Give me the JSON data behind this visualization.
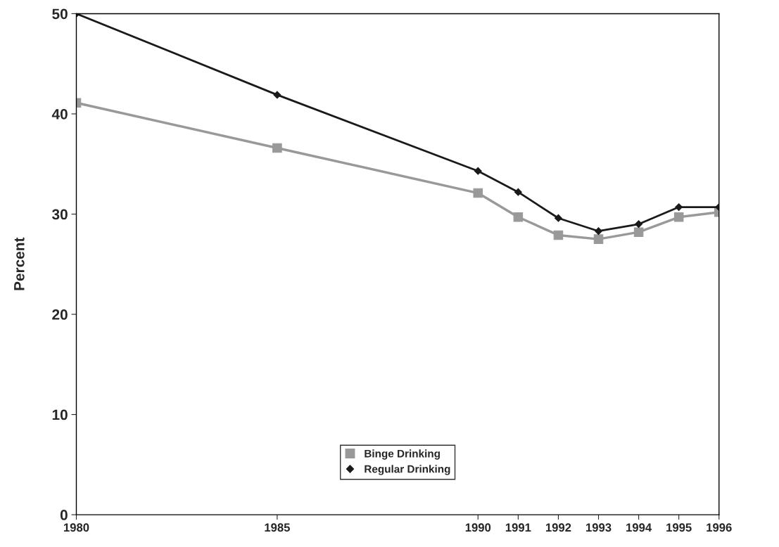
{
  "chart_data": {
    "type": "line",
    "ylabel": "Percent",
    "x": [
      1980,
      1985,
      1990,
      1991,
      1992,
      1993,
      1994,
      1995,
      1996
    ],
    "series": [
      {
        "name": "Binge Drinking",
        "color": "#999999",
        "marker": "square",
        "values": [
          41.1,
          36.6,
          32.1,
          29.7,
          27.9,
          27.5,
          28.2,
          29.7,
          30.2
        ]
      },
      {
        "name": "Regular Drinking",
        "color": "#1a1a1a",
        "marker": "diamond",
        "values": [
          50.0,
          41.9,
          34.3,
          32.2,
          29.6,
          28.3,
          29.0,
          30.7,
          30.7
        ]
      }
    ],
    "xlim": [
      1980,
      1996
    ],
    "xticks": [
      1980,
      1985,
      1990,
      1991,
      1992,
      1993,
      1994,
      1995,
      1996
    ],
    "ylim": [
      0,
      50
    ],
    "yticks": [
      0,
      10,
      20,
      30,
      40,
      50
    ],
    "legend": "bottom",
    "grid": false
  }
}
